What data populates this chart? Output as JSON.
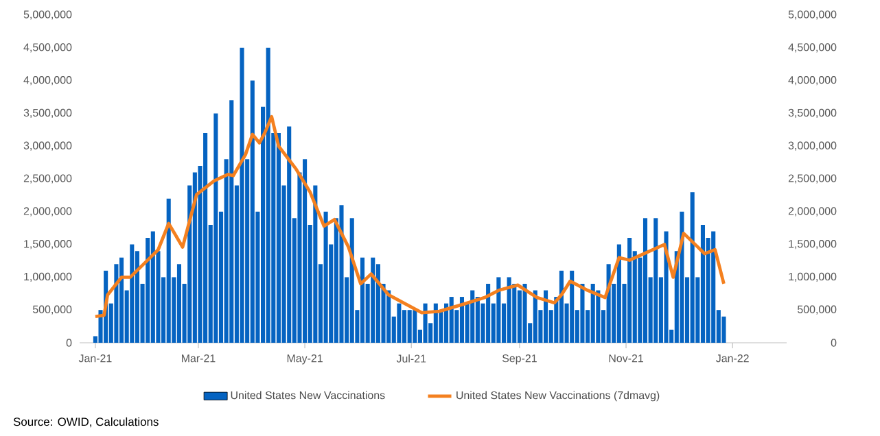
{
  "chart_data": {
    "type": "bar",
    "annotations": [
      "Source: OWID, Calculations"
    ],
    "xlim": [
      "2020-12-23",
      "2022-02-01"
    ],
    "xticks": [
      {
        "value": "2021-01-01",
        "label": "Jan-21"
      },
      {
        "value": "2021-03-01",
        "label": "Mar-21"
      },
      {
        "value": "2021-05-01",
        "label": "May-21"
      },
      {
        "value": "2021-07-01",
        "label": "Jul-21"
      },
      {
        "value": "2021-09-01",
        "label": "Sep-21"
      },
      {
        "value": "2021-11-01",
        "label": "Nov-21"
      },
      {
        "value": "2022-01-01",
        "label": "Jan-22"
      }
    ],
    "ylim": [
      0,
      5000000
    ],
    "yticks": [
      {
        "value": 0,
        "label": "0"
      },
      {
        "value": 500000,
        "label": "500,000"
      },
      {
        "value": 1000000,
        "label": "1,000,000"
      },
      {
        "value": 1500000,
        "label": "1,500,000"
      },
      {
        "value": 2000000,
        "label": "2,000,000"
      },
      {
        "value": 2500000,
        "label": "2,500,000"
      },
      {
        "value": 3000000,
        "label": "3,000,000"
      },
      {
        "value": 3500000,
        "label": "3,500,000"
      },
      {
        "value": 4000000,
        "label": "4,000,000"
      },
      {
        "value": 4500000,
        "label": "4,500,000"
      },
      {
        "value": 5000000,
        "label": "5,000,000"
      }
    ],
    "y2lim": [
      0,
      5000000
    ],
    "y2ticks": [
      {
        "value": 0,
        "label": "0"
      },
      {
        "value": 500000,
        "label": "500,000"
      },
      {
        "value": 1000000,
        "label": "1,000,000"
      },
      {
        "value": 1500000,
        "label": "1,500,000"
      },
      {
        "value": 2000000,
        "label": "2,000,000"
      },
      {
        "value": 2500000,
        "label": "2,500,000"
      },
      {
        "value": 3000000,
        "label": "3,000,000"
      },
      {
        "value": 3500000,
        "label": "3,500,000"
      },
      {
        "value": 4000000,
        "label": "4,000,000"
      },
      {
        "value": 4500000,
        "label": "4,500,000"
      },
      {
        "value": 5000000,
        "label": "5,000,000"
      }
    ],
    "legend": "bottom",
    "series": [
      {
        "name": "United States New Vaccinations",
        "color": "#0563c1",
        "x": [
          "2021-01-01",
          "2021-01-04",
          "2021-01-07",
          "2021-01-10",
          "2021-01-13",
          "2021-01-16",
          "2021-01-19",
          "2021-01-22",
          "2021-01-25",
          "2021-01-28",
          "2021-01-31",
          "2021-02-03",
          "2021-02-06",
          "2021-02-09",
          "2021-02-12",
          "2021-02-15",
          "2021-02-18",
          "2021-02-21",
          "2021-02-24",
          "2021-02-27",
          "2021-03-02",
          "2021-03-05",
          "2021-03-08",
          "2021-03-11",
          "2021-03-14",
          "2021-03-17",
          "2021-03-20",
          "2021-03-23",
          "2021-03-26",
          "2021-03-29",
          "2021-04-01",
          "2021-04-04",
          "2021-04-07",
          "2021-04-10",
          "2021-04-13",
          "2021-04-16",
          "2021-04-19",
          "2021-04-22",
          "2021-04-25",
          "2021-04-28",
          "2021-05-01",
          "2021-05-04",
          "2021-05-07",
          "2021-05-10",
          "2021-05-13",
          "2021-05-16",
          "2021-05-19",
          "2021-05-22",
          "2021-05-25",
          "2021-05-28",
          "2021-05-31",
          "2021-06-03",
          "2021-06-06",
          "2021-06-09",
          "2021-06-12",
          "2021-06-15",
          "2021-06-18",
          "2021-06-21",
          "2021-06-24",
          "2021-06-27",
          "2021-06-30",
          "2021-07-03",
          "2021-07-06",
          "2021-07-09",
          "2021-07-12",
          "2021-07-15",
          "2021-07-18",
          "2021-07-21",
          "2021-07-24",
          "2021-07-27",
          "2021-07-30",
          "2021-08-02",
          "2021-08-05",
          "2021-08-08",
          "2021-08-11",
          "2021-08-14",
          "2021-08-17",
          "2021-08-20",
          "2021-08-23",
          "2021-08-26",
          "2021-08-29",
          "2021-09-01",
          "2021-09-04",
          "2021-09-07",
          "2021-09-10",
          "2021-09-13",
          "2021-09-16",
          "2021-09-19",
          "2021-09-22",
          "2021-09-25",
          "2021-09-28",
          "2021-10-01",
          "2021-10-04",
          "2021-10-07",
          "2021-10-10",
          "2021-10-13",
          "2021-10-16",
          "2021-10-19",
          "2021-10-22",
          "2021-10-25",
          "2021-10-28",
          "2021-10-31",
          "2021-11-03",
          "2021-11-06",
          "2021-11-09",
          "2021-11-12",
          "2021-11-15",
          "2021-11-18",
          "2021-11-21",
          "2021-11-24",
          "2021-11-27",
          "2021-11-30",
          "2021-12-03",
          "2021-12-06",
          "2021-12-09",
          "2021-12-12",
          "2021-12-15",
          "2021-12-18",
          "2021-12-21",
          "2021-12-24",
          "2021-12-27"
        ],
        "values": [
          100000,
          500000,
          1100000,
          600000,
          1200000,
          1300000,
          800000,
          1500000,
          1400000,
          900000,
          1600000,
          1700000,
          1400000,
          1000000,
          2200000,
          1000000,
          1200000,
          900000,
          2400000,
          2600000,
          2700000,
          3200000,
          1800000,
          3500000,
          2000000,
          2800000,
          3700000,
          2400000,
          4500000,
          2800000,
          4000000,
          2000000,
          3600000,
          4500000,
          3200000,
          3200000,
          2400000,
          3300000,
          1900000,
          2600000,
          2800000,
          1800000,
          2400000,
          1200000,
          2000000,
          1500000,
          1900000,
          2100000,
          1000000,
          1900000,
          500000,
          1300000,
          900000,
          1300000,
          1200000,
          900000,
          800000,
          400000,
          600000,
          500000,
          500000,
          500000,
          200000,
          600000,
          300000,
          600000,
          500000,
          600000,
          700000,
          500000,
          700000,
          600000,
          800000,
          700000,
          600000,
          900000,
          600000,
          1000000,
          600000,
          1000000,
          900000,
          800000,
          900000,
          300000,
          800000,
          500000,
          800000,
          500000,
          700000,
          1100000,
          600000,
          1100000,
          500000,
          900000,
          500000,
          900000,
          800000,
          500000,
          1200000,
          900000,
          1500000,
          900000,
          1600000,
          1400000,
          1300000,
          1900000,
          1000000,
          1900000,
          1000000,
          1700000,
          200000,
          1400000,
          2000000,
          1000000,
          2300000,
          1000000,
          1800000,
          1600000,
          1700000,
          500000,
          400000
        ]
      },
      {
        "name": "United States New Vaccinations (7dmavg)",
        "type": "line",
        "color": "#f4801f",
        "x": [
          "2021-01-01",
          "2021-01-06",
          "2021-01-08",
          "2021-01-16",
          "2021-01-21",
          "2021-01-29",
          "2021-02-06",
          "2021-02-12",
          "2021-02-20",
          "2021-02-28",
          "2021-03-10",
          "2021-03-18",
          "2021-03-21",
          "2021-03-28",
          "2021-04-01",
          "2021-04-05",
          "2021-04-08",
          "2021-04-12",
          "2021-04-16",
          "2021-04-26",
          "2021-05-04",
          "2021-05-12",
          "2021-05-18",
          "2021-05-26",
          "2021-06-02",
          "2021-06-08",
          "2021-06-18",
          "2021-07-07",
          "2021-07-17",
          "2021-07-31",
          "2021-08-12",
          "2021-08-20",
          "2021-08-31",
          "2021-09-11",
          "2021-09-21",
          "2021-09-25",
          "2021-09-30",
          "2021-10-10",
          "2021-10-20",
          "2021-10-28",
          "2021-11-03",
          "2021-11-23",
          "2021-11-28",
          "2021-12-04",
          "2021-12-16",
          "2021-12-22",
          "2021-12-27"
        ],
        "values": [
          400000,
          420000,
          730000,
          1000000,
          1000000,
          1210000,
          1420000,
          1820000,
          1460000,
          2260000,
          2470000,
          2570000,
          2550000,
          2870000,
          3180000,
          3050000,
          3200000,
          3450000,
          3000000,
          2650000,
          2300000,
          1780000,
          1880000,
          1460000,
          900000,
          1050000,
          730000,
          460000,
          480000,
          590000,
          690000,
          800000,
          880000,
          690000,
          610000,
          730000,
          940000,
          800000,
          690000,
          1300000,
          1260000,
          1500000,
          1000000,
          1670000,
          1360000,
          1420000,
          900000
        ]
      }
    ]
  }
}
